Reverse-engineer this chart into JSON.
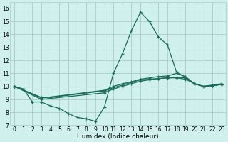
{
  "xlabel": "Humidex (Indice chaleur)",
  "xlim": [
    -0.5,
    23.5
  ],
  "ylim": [
    7,
    16.5
  ],
  "yticks": [
    7,
    8,
    9,
    10,
    11,
    12,
    13,
    14,
    15,
    16
  ],
  "xticks": [
    0,
    1,
    2,
    3,
    4,
    5,
    6,
    7,
    8,
    9,
    10,
    11,
    12,
    13,
    14,
    15,
    16,
    17,
    18,
    19,
    20,
    21,
    22,
    23
  ],
  "background_color": "#cff0ec",
  "grid_color": "#aacdc8",
  "line_color": "#1a6b5a",
  "line1_x": [
    0,
    1,
    2,
    3,
    4,
    5,
    6,
    7,
    8,
    9,
    10,
    11,
    12,
    13,
    14,
    15,
    16,
    17,
    18,
    19,
    20,
    21,
    22,
    23
  ],
  "line1_y": [
    10.0,
    9.8,
    8.8,
    8.8,
    8.5,
    8.3,
    7.9,
    7.6,
    7.5,
    7.3,
    8.4,
    11.0,
    12.5,
    14.3,
    15.7,
    15.0,
    13.8,
    13.2,
    11.1,
    10.7,
    10.2,
    10.0,
    10.1,
    10.2
  ],
  "line2_x": [
    0,
    3,
    10,
    11,
    12,
    13,
    14,
    15,
    16,
    17,
    18,
    19,
    20,
    21,
    22,
    23
  ],
  "line2_y": [
    10.0,
    9.0,
    9.5,
    9.8,
    10.0,
    10.2,
    10.4,
    10.5,
    10.6,
    10.65,
    10.7,
    10.65,
    10.2,
    10.0,
    10.05,
    10.15
  ],
  "line3_x": [
    0,
    3,
    10,
    11,
    12,
    13,
    14,
    15,
    16,
    17,
    18,
    19,
    20,
    21,
    22,
    23
  ],
  "line3_y": [
    10.0,
    9.1,
    9.7,
    10.0,
    10.2,
    10.35,
    10.55,
    10.65,
    10.75,
    10.8,
    11.0,
    10.75,
    10.2,
    10.0,
    10.05,
    10.15
  ],
  "line4_x": [
    0,
    3,
    4,
    10,
    11,
    12,
    13,
    14,
    15,
    16,
    17,
    18,
    19,
    20,
    21,
    22,
    23
  ],
  "line4_y": [
    10.0,
    9.15,
    9.15,
    9.65,
    9.9,
    10.1,
    10.3,
    10.5,
    10.55,
    10.6,
    10.65,
    10.65,
    10.55,
    10.2,
    10.0,
    10.05,
    10.15
  ]
}
